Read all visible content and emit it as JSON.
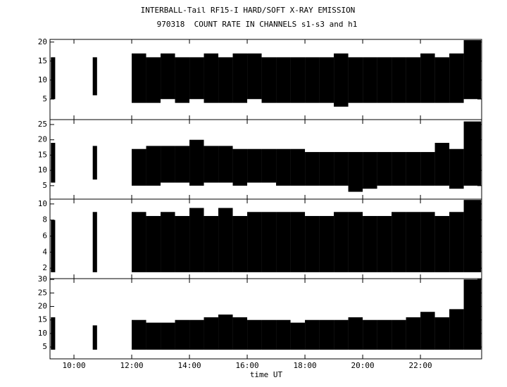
{
  "title": "INTERBALL-Tail RF15-I HARD/SOFT X-RAY EMISSION",
  "subtitle": "970318  COUNT RATE IN CHANNELS s1-s3 and h1",
  "xlabel": "time UT",
  "x": [
    9.2,
    9.35,
    10.65,
    10.8,
    12.0,
    12.5,
    13.0,
    13.5,
    14.0,
    14.5,
    15.0,
    15.5,
    16.0,
    16.5,
    17.0,
    17.5,
    18.0,
    18.5,
    19.0,
    19.5,
    20.0,
    20.5,
    21.0,
    21.5,
    22.0,
    22.5,
    23.0,
    23.5,
    24.1
  ],
  "xlim": [
    9.17,
    24.12
  ],
  "xticks": [
    {
      "value": 10,
      "label": "10:00"
    },
    {
      "value": 12,
      "label": "12:00"
    },
    {
      "value": 14,
      "label": "14:00"
    },
    {
      "value": 16,
      "label": "16:00"
    },
    {
      "value": 18,
      "label": "18:00"
    },
    {
      "value": 20,
      "label": "20:00"
    },
    {
      "value": 22,
      "label": "22:00"
    }
  ],
  "chart_data": [
    {
      "type": "range",
      "color": "#000000",
      "ylim": [
        -0.4,
        20.7
      ],
      "yticks": [
        5,
        10,
        15,
        20
      ],
      "low": [
        5,
        null,
        6,
        null,
        4,
        4,
        5,
        4,
        5,
        4,
        4,
        4,
        5,
        4,
        4,
        4,
        4,
        4,
        3,
        4,
        4,
        4,
        4,
        4,
        4,
        4,
        4,
        5,
        null
      ],
      "high": [
        16,
        null,
        16,
        null,
        17,
        16,
        17,
        16,
        16,
        17,
        16,
        17,
        17,
        16,
        16,
        16,
        16,
        16,
        17,
        16,
        16,
        16,
        16,
        16,
        17,
        16,
        17,
        20.5,
        null
      ]
    },
    {
      "type": "range",
      "color": "#000000",
      "ylim": [
        0.6,
        26.6
      ],
      "yticks": [
        5,
        10,
        15,
        20,
        25
      ],
      "low": [
        6,
        null,
        7,
        null,
        5,
        5,
        6,
        6,
        5,
        6,
        6,
        5,
        6,
        6,
        5,
        5,
        5,
        5,
        5,
        3,
        4,
        5,
        5,
        5,
        5,
        5,
        4,
        5,
        null
      ],
      "high": [
        19,
        null,
        18,
        null,
        17,
        18,
        18,
        18,
        20,
        18,
        18,
        17,
        17,
        17,
        17,
        17,
        16,
        16,
        16,
        16,
        16,
        16,
        16,
        16,
        16,
        19,
        17,
        26,
        null
      ]
    },
    {
      "type": "range",
      "color": "#000000",
      "ylim": [
        0.7,
        10.6
      ],
      "yticks": [
        2,
        4,
        6,
        8,
        10
      ],
      "low": [
        1.5,
        null,
        1.5,
        null,
        1.5,
        1.5,
        1.5,
        1.5,
        1.5,
        1.5,
        1.5,
        1.5,
        1.5,
        1.5,
        1.5,
        1.5,
        1.5,
        1.5,
        1.5,
        1.5,
        1.5,
        1.5,
        1.5,
        1.5,
        1.5,
        1.5,
        1.5,
        1.5,
        null
      ],
      "high": [
        8,
        null,
        9,
        null,
        9,
        8.5,
        9,
        8.5,
        9.5,
        8.5,
        9.5,
        8.5,
        9,
        9,
        9,
        9,
        8.5,
        8.5,
        9,
        9,
        8.5,
        8.5,
        9,
        9,
        9,
        8.5,
        9,
        10.5,
        null
      ]
    },
    {
      "type": "range",
      "color": "#000000",
      "ylim": [
        0.6,
        30.3
      ],
      "yticks": [
        5,
        10,
        15,
        20,
        25,
        30
      ],
      "low": [
        4,
        null,
        4,
        null,
        4,
        4,
        4,
        4,
        4,
        4,
        4,
        4,
        4,
        4,
        4,
        4,
        4,
        4,
        4,
        4,
        4,
        4,
        4,
        4,
        4,
        4,
        4,
        4,
        null
      ],
      "high": [
        16,
        null,
        13,
        null,
        15,
        14,
        14,
        15,
        15,
        16,
        17,
        16,
        15,
        15,
        15,
        14,
        15,
        15,
        15,
        16,
        15,
        15,
        15,
        16,
        18,
        16,
        19,
        30,
        null
      ]
    }
  ]
}
